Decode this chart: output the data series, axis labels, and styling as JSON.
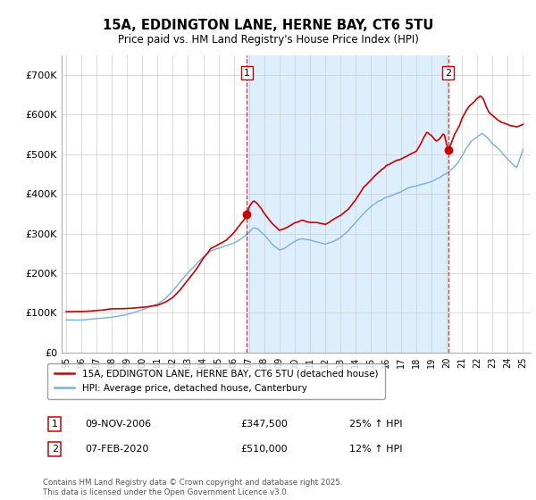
{
  "title": "15A, EDDINGTON LANE, HERNE BAY, CT6 5TU",
  "subtitle": "Price paid vs. HM Land Registry's House Price Index (HPI)",
  "legend_line1": "15A, EDDINGTON LANE, HERNE BAY, CT6 5TU (detached house)",
  "legend_line2": "HPI: Average price, detached house, Canterbury",
  "footer": "Contains HM Land Registry data © Crown copyright and database right 2025.\nThis data is licensed under the Open Government Licence v3.0.",
  "ylim_min": 0,
  "ylim_max": 750000,
  "yticks": [
    0,
    100000,
    200000,
    300000,
    400000,
    500000,
    600000,
    700000
  ],
  "ytick_labels": [
    "£0",
    "£100K",
    "£200K",
    "£300K",
    "£400K",
    "£500K",
    "£600K",
    "£700K"
  ],
  "red_color": "#cc0000",
  "blue_color": "#7bafd4",
  "shade_color": "#ddeeff",
  "marker_box_color": "#cc0000",
  "grid_color": "#cccccc",
  "bg_color": "#ffffff",
  "x_start_year": 1995,
  "x_end_year": 2025,
  "marker1_year": 2006.86,
  "marker2_year": 2020.09,
  "marker1_price": 347500,
  "marker2_price": 510000
}
